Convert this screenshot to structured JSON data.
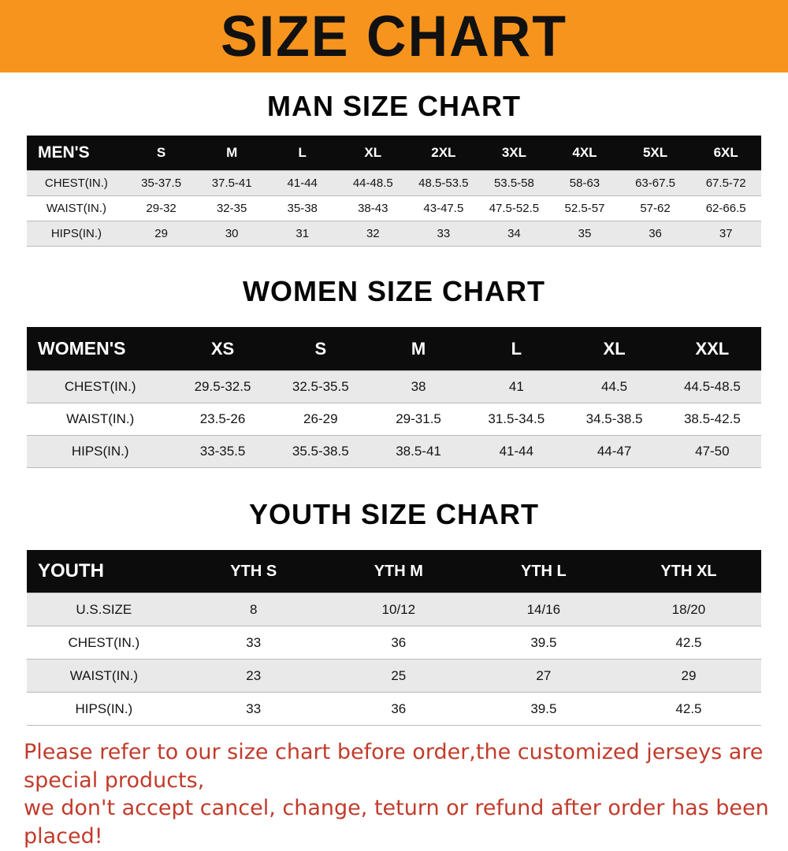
{
  "banner": {
    "title": "SIZE CHART",
    "bg_color": "#F7941E",
    "text_color": "#111111"
  },
  "sections": [
    {
      "heading": "MAN SIZE CHART"
    },
    {
      "heading": "WOMEN SIZE CHART"
    },
    {
      "heading": "YOUTH SIZE CHART"
    }
  ],
  "chart_data": [
    {
      "type": "table",
      "title": "MAN SIZE CHART",
      "header": [
        "MEN'S",
        "S",
        "M",
        "L",
        "XL",
        "2XL",
        "3XL",
        "4XL",
        "5XL",
        "6XL"
      ],
      "rows": [
        [
          "CHEST(IN.)",
          "35-37.5",
          "37.5-41",
          "41-44",
          "44-48.5",
          "48.5-53.5",
          "53.5-58",
          "58-63",
          "63-67.5",
          "67.5-72"
        ],
        [
          "WAIST(IN.)",
          "29-32",
          "32-35",
          "35-38",
          "38-43",
          "43-47.5",
          "47.5-52.5",
          "52.5-57",
          "57-62",
          "62-66.5"
        ],
        [
          "HIPS(IN.)",
          "29",
          "30",
          "31",
          "32",
          "33",
          "34",
          "35",
          "36",
          "37"
        ]
      ]
    },
    {
      "type": "table",
      "title": "WOMEN SIZE CHART",
      "header": [
        "WOMEN'S",
        "XS",
        "S",
        "M",
        "L",
        "XL",
        "XXL"
      ],
      "rows": [
        [
          "CHEST(IN.)",
          "29.5-32.5",
          "32.5-35.5",
          "38",
          "41",
          "44.5",
          "44.5-48.5"
        ],
        [
          "WAIST(IN.)",
          "23.5-26",
          "26-29",
          "29-31.5",
          "31.5-34.5",
          "34.5-38.5",
          "38.5-42.5"
        ],
        [
          "HIPS(IN.)",
          "33-35.5",
          "35.5-38.5",
          "38.5-41",
          "41-44",
          "44-47",
          "47-50"
        ]
      ]
    },
    {
      "type": "table",
      "title": "YOUTH SIZE CHART",
      "header": [
        "YOUTH",
        "YTH S",
        "YTH M",
        "YTH L",
        "YTH XL"
      ],
      "rows": [
        [
          "U.S.SIZE",
          "8",
          "10/12",
          "14/16",
          "18/20"
        ],
        [
          "CHEST(IN.)",
          "33",
          "36",
          "39.5",
          "42.5"
        ],
        [
          "WAIST(IN.)",
          "23",
          "25",
          "27",
          "29"
        ],
        [
          "HIPS(IN.)",
          "33",
          "36",
          "39.5",
          "42.5"
        ]
      ]
    }
  ],
  "footer": {
    "line1": "Please refer to our size chart before order,the customized jerseys are special products,",
    "line2": "we don't accept cancel, change, teturn or refund after order has been placed!",
    "text_color": "#C23B2B"
  }
}
